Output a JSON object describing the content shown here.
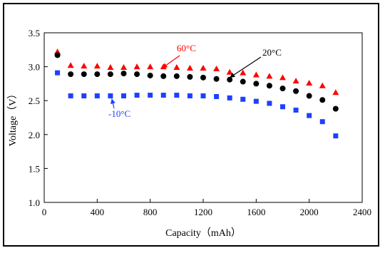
{
  "chart_data": {
    "type": "scatter",
    "title": "",
    "xlabel": "Capacity（mAh）",
    "ylabel": "Voltage（V）",
    "xlim": [
      0,
      2400
    ],
    "ylim": [
      1.0,
      3.5
    ],
    "xticks": [
      "0",
      "400",
      "800",
      "1200",
      "1600",
      "2000",
      "2400"
    ],
    "yticks": [
      "1.0",
      "1.5",
      "2.0",
      "2.5",
      "3.0",
      "3.5"
    ],
    "grid": false,
    "series": [
      {
        "name": "60°C",
        "marker": "triangle",
        "color": "#ff0000",
        "x": [
          100,
          200,
          300,
          400,
          500,
          600,
          700,
          800,
          900,
          1000,
          1100,
          1200,
          1300,
          1400,
          1500,
          1600,
          1700,
          1800,
          1900,
          2000,
          2100,
          2200
        ],
        "y": [
          3.22,
          3.02,
          3.01,
          3.01,
          2.99,
          2.99,
          3.0,
          3.0,
          3.0,
          2.99,
          2.98,
          2.98,
          2.97,
          2.92,
          2.91,
          2.88,
          2.86,
          2.84,
          2.79,
          2.76,
          2.72,
          2.62
        ]
      },
      {
        "name": "20°C",
        "marker": "circle",
        "color": "#000000",
        "x": [
          100,
          200,
          300,
          400,
          500,
          600,
          700,
          800,
          900,
          1000,
          1100,
          1200,
          1300,
          1400,
          1500,
          1600,
          1700,
          1800,
          1900,
          2000,
          2100,
          2200
        ],
        "y": [
          3.17,
          2.89,
          2.89,
          2.89,
          2.89,
          2.9,
          2.89,
          2.87,
          2.86,
          2.86,
          2.85,
          2.84,
          2.82,
          2.81,
          2.78,
          2.75,
          2.72,
          2.68,
          2.64,
          2.57,
          2.51,
          2.38
        ]
      },
      {
        "name": "-10°C",
        "marker": "square",
        "color": "#1f3fff",
        "x": [
          100,
          200,
          300,
          400,
          500,
          600,
          700,
          800,
          900,
          1000,
          1100,
          1200,
          1300,
          1400,
          1500,
          1600,
          1700,
          1800,
          1900,
          2000,
          2100,
          2200
        ],
        "y": [
          2.91,
          2.57,
          2.57,
          2.57,
          2.57,
          2.57,
          2.58,
          2.58,
          2.58,
          2.58,
          2.57,
          2.57,
          2.56,
          2.54,
          2.52,
          2.49,
          2.46,
          2.41,
          2.36,
          2.28,
          2.19,
          1.98
        ]
      }
    ],
    "annotations": [
      {
        "text": "60°C",
        "color": "#ff0000",
        "series": "60°C",
        "x": 890,
        "y": 2.98
      },
      {
        "text": "20°C",
        "color": "#000000",
        "series": "20°C",
        "x": 1400,
        "y": 2.84
      },
      {
        "text": "-10°C",
        "color": "#1f3fff",
        "series": "-10°C",
        "x": 510,
        "y": 2.53
      }
    ]
  }
}
